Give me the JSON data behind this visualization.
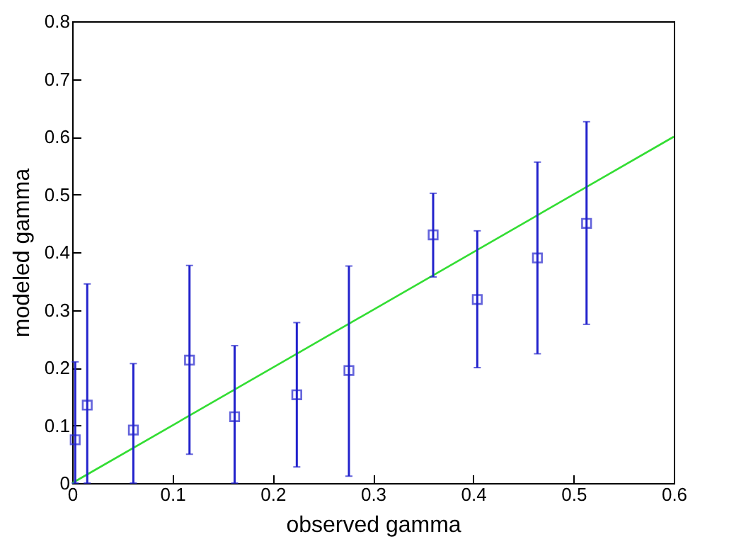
{
  "chart_data": {
    "type": "scatter",
    "xlabel": "observed gamma",
    "ylabel": "modeled gamma",
    "xlim": [
      0,
      0.6
    ],
    "xticks": [
      0,
      0.1,
      0.2,
      0.3,
      0.4,
      0.5,
      0.6
    ],
    "ylim": [
      0,
      0.8
    ],
    "yticks": [
      0,
      0.1,
      0.2,
      0.3,
      0.4,
      0.5,
      0.6,
      0.7,
      0.8
    ],
    "grid": false,
    "marker": "square",
    "series": [
      {
        "type": "line",
        "marker": "none",
        "color": "#33dd33",
        "x": [
          0,
          0.6
        ],
        "values": [
          0,
          0.6
        ]
      },
      {
        "color": "#2222cc",
        "x": [
          0.003,
          0.015,
          0.061,
          0.117,
          0.162,
          0.224,
          0.276,
          0.36,
          0.404,
          0.464,
          0.513
        ],
        "values": [
          0.075,
          0.135,
          0.092,
          0.213,
          0.115,
          0.153,
          0.195,
          0.43,
          0.318,
          0.39,
          0.45
        ],
        "errors": [
          [
            0,
            0.21
          ],
          [
            0,
            0.345
          ],
          [
            0,
            0.207
          ],
          [
            0.05,
            0.377
          ],
          [
            0,
            0.238
          ],
          [
            0.028,
            0.278
          ],
          [
            0.012,
            0.376
          ],
          [
            0.357,
            0.502
          ],
          [
            0.2,
            0.437
          ],
          [
            0.224,
            0.556
          ],
          [
            0.275,
            0.626
          ]
        ]
      }
    ]
  }
}
